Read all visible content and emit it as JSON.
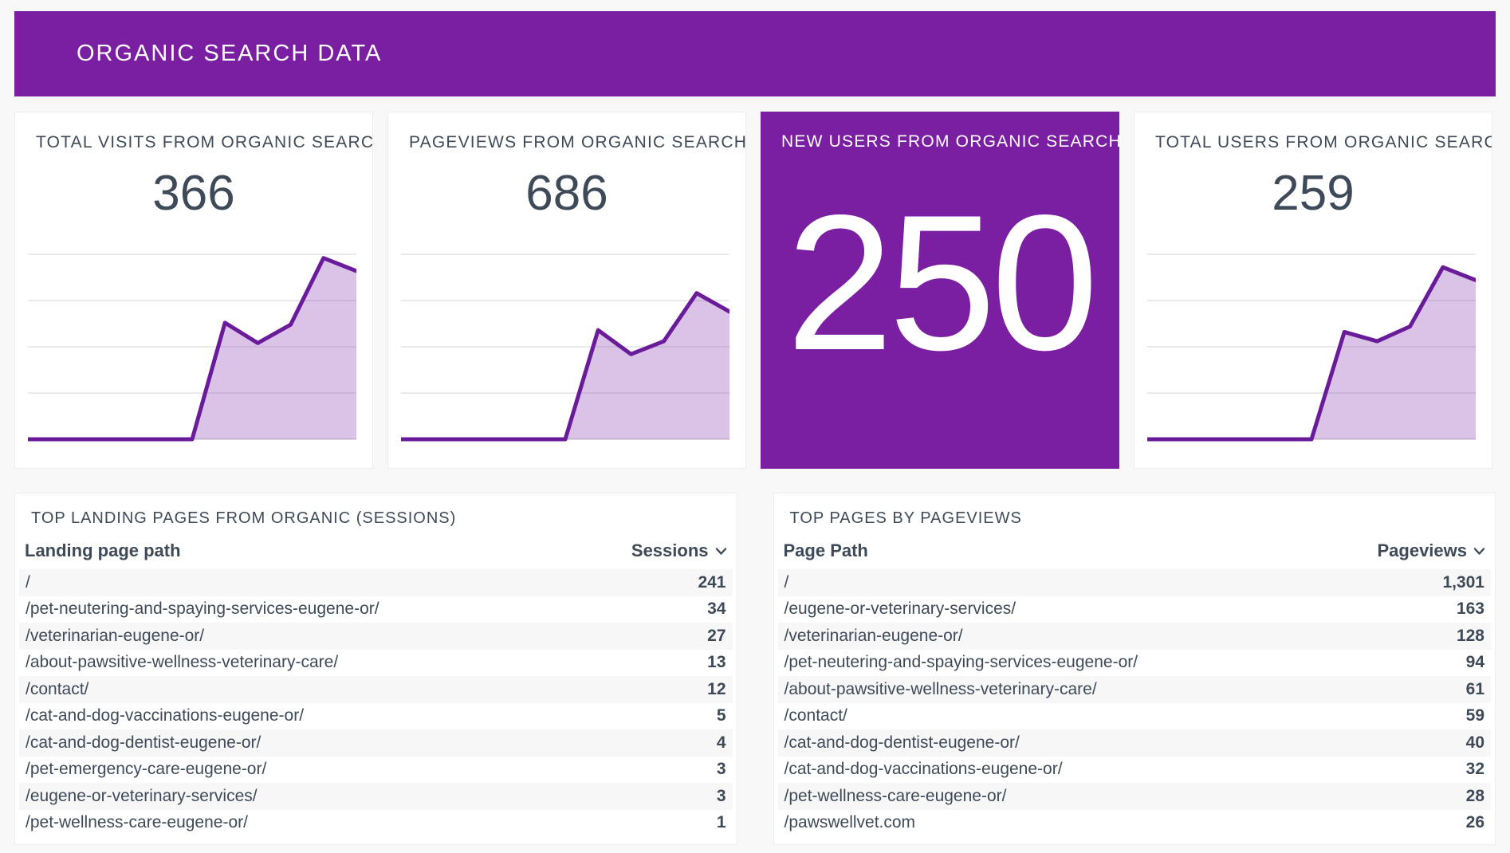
{
  "header": {
    "title": "ORGANIC SEARCH DATA"
  },
  "colors": {
    "accent_purple": "#7b1fa2",
    "chart_line": "#6a1b9a",
    "chart_fill": "rgba(122,40,170,0.28)",
    "grid_line": "#e4e4e6",
    "text_slate": "#3e4a57",
    "row_stripe": "#f7f7f8",
    "card_bg": "#ffffff",
    "page_bg": "#f8f8f9"
  },
  "scorecards": [
    {
      "title": "TOTAL VISITS FROM ORGANIC SEARCH",
      "value": "366",
      "highlight": false
    },
    {
      "title": "PAGEVIEWS FROM ORGANIC SEARCH",
      "value": "686",
      "highlight": false
    },
    {
      "title": "NEW USERS FROM ORGANIC SEARCH",
      "value": "250",
      "highlight": true
    },
    {
      "title": "TOTAL USERS FROM ORGANIC SEARCH",
      "value": "259",
      "highlight": false
    }
  ],
  "chart_data": [
    {
      "type": "area",
      "name": "TOTAL VISITS FROM ORGANIC SEARCH sparkline",
      "values": [
        0,
        0,
        0,
        0,
        0,
        0,
        63,
        52,
        62,
        98,
        91
      ],
      "ylim": [
        0,
        100
      ],
      "grid": true
    },
    {
      "type": "area",
      "name": "PAGEVIEWS FROM ORGANIC SEARCH sparkline",
      "values": [
        0,
        0,
        0,
        0,
        0,
        0,
        59,
        46,
        53,
        79,
        69
      ],
      "ylim": [
        0,
        100
      ],
      "grid": true
    },
    {
      "type": "area",
      "name": "TOTAL USERS FROM ORGANIC SEARCH sparkline",
      "values": [
        0,
        0,
        0,
        0,
        0,
        0,
        58,
        53,
        61,
        93,
        86
      ],
      "ylim": [
        0,
        100
      ],
      "grid": true
    }
  ],
  "tables": [
    {
      "title": "TOP LANDING PAGES FROM ORGANIC (SESSIONS)",
      "dimension_header": "Landing page path",
      "metric_header": "Sessions",
      "sort_icon": "chevron-down",
      "rows": [
        {
          "path": "/",
          "value": "241"
        },
        {
          "path": "/pet-neutering-and-spaying-services-eugene-or/",
          "value": "34"
        },
        {
          "path": "/veterinarian-eugene-or/",
          "value": "27"
        },
        {
          "path": "/about-pawsitive-wellness-veterinary-care/",
          "value": "13"
        },
        {
          "path": "/contact/",
          "value": "12"
        },
        {
          "path": "/cat-and-dog-vaccinations-eugene-or/",
          "value": "5"
        },
        {
          "path": "/cat-and-dog-dentist-eugene-or/",
          "value": "4"
        },
        {
          "path": "/pet-emergency-care-eugene-or/",
          "value": "3"
        },
        {
          "path": "/eugene-or-veterinary-services/",
          "value": "3"
        },
        {
          "path": "/pet-wellness-care-eugene-or/",
          "value": "1"
        }
      ]
    },
    {
      "title": "TOP PAGES BY PAGEVIEWS",
      "dimension_header": "Page Path",
      "metric_header": "Pageviews",
      "sort_icon": "chevron-down",
      "rows": [
        {
          "path": "/",
          "value": "1,301"
        },
        {
          "path": "/eugene-or-veterinary-services/",
          "value": "163"
        },
        {
          "path": "/veterinarian-eugene-or/",
          "value": "128"
        },
        {
          "path": "/pet-neutering-and-spaying-services-eugene-or/",
          "value": "94"
        },
        {
          "path": "/about-pawsitive-wellness-veterinary-care/",
          "value": "61"
        },
        {
          "path": "/contact/",
          "value": "59"
        },
        {
          "path": "/cat-and-dog-dentist-eugene-or/",
          "value": "40"
        },
        {
          "path": "/cat-and-dog-vaccinations-eugene-or/",
          "value": "32"
        },
        {
          "path": "/pet-wellness-care-eugene-or/",
          "value": "28"
        },
        {
          "path": "/pawswellvet.com",
          "value": "26"
        }
      ]
    }
  ]
}
